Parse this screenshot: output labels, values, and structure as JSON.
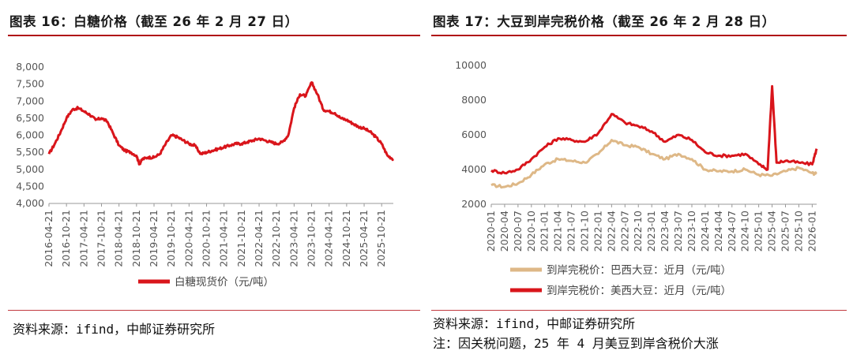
{
  "colors": {
    "red": "#d9151b",
    "tan": "#deb887",
    "rule": "#b00f16"
  },
  "panel1": {
    "title": "图表 16：白糖价格（截至 26 年 2 月 27 日）",
    "source": "资料来源：ifind，中邮证券研究所"
  },
  "panel2": {
    "title": "图表 17：大豆到岸完税价格（截至 26 年 2 月 28 日）",
    "source": "资料来源：ifind，中邮证券研究所",
    "note": "注：因关税问题，25 年 4 月美豆到岸含税价大涨"
  },
  "chart_data": [
    {
      "type": "line",
      "ylim": [
        4000,
        8000
      ],
      "yticks": [
        "4,000",
        "4,500",
        "5,000",
        "5,500",
        "6,000",
        "6,500",
        "7,000",
        "7,500",
        "8,000"
      ],
      "xticks": [
        "2016-04-21",
        "2016-10-21",
        "2017-04-21",
        "2017-10-21",
        "2018-04-21",
        "2018-10-21",
        "2019-04-21",
        "2019-10-21",
        "2020-04-21",
        "2020-10-21",
        "2021-04-21",
        "2021-10-21",
        "2022-04-21",
        "2022-10-21",
        "2023-04-21",
        "2023-10-21",
        "2024-04-21",
        "2024-10-21",
        "2025-04-21",
        "2025-10-21"
      ],
      "legend_position": "bottom",
      "series": [
        {
          "name": "白糖现货价（元/吨）",
          "color": "#d9151b",
          "x": [
            "2016-04-21",
            "2016-06-21",
            "2016-08-21",
            "2016-10-21",
            "2016-12-21",
            "2017-02-21",
            "2017-04-21",
            "2017-06-21",
            "2017-08-21",
            "2017-10-21",
            "2017-12-21",
            "2018-02-21",
            "2018-04-21",
            "2018-06-21",
            "2018-08-21",
            "2018-10-21",
            "2018-11-21",
            "2018-12-21",
            "2019-02-21",
            "2019-04-21",
            "2019-06-21",
            "2019-08-21",
            "2019-10-21",
            "2019-12-21",
            "2020-02-21",
            "2020-04-21",
            "2020-06-21",
            "2020-08-21",
            "2020-10-21",
            "2020-12-21",
            "2021-02-21",
            "2021-04-21",
            "2021-06-21",
            "2021-08-21",
            "2021-10-21",
            "2021-12-21",
            "2022-02-21",
            "2022-04-21",
            "2022-06-21",
            "2022-08-21",
            "2022-10-21",
            "2022-12-21",
            "2023-02-21",
            "2023-04-21",
            "2023-06-21",
            "2023-08-21",
            "2023-10-21",
            "2023-12-21",
            "2024-02-21",
            "2024-04-21",
            "2024-06-21",
            "2024-08-21",
            "2024-10-21",
            "2024-12-21",
            "2025-02-21",
            "2025-04-21",
            "2025-06-21",
            "2025-08-21",
            "2025-10-21",
            "2025-12-21",
            "2026-02-21"
          ],
          "y": [
            5450,
            5750,
            6100,
            6500,
            6750,
            6800,
            6700,
            6600,
            6450,
            6500,
            6400,
            6050,
            5700,
            5550,
            5500,
            5400,
            5150,
            5300,
            5350,
            5350,
            5450,
            5750,
            6000,
            5950,
            5850,
            5750,
            5700,
            5450,
            5500,
            5550,
            5600,
            5650,
            5700,
            5750,
            5750,
            5800,
            5850,
            5900,
            5850,
            5800,
            5750,
            5800,
            6000,
            6800,
            7200,
            7150,
            7550,
            7200,
            6750,
            6700,
            6650,
            6500,
            6450,
            6350,
            6250,
            6200,
            6100,
            5950,
            5750,
            5400,
            5300
          ]
        }
      ]
    },
    {
      "type": "line",
      "ylim": [
        2000,
        10000
      ],
      "yticks": [
        "2000",
        "4000",
        "6000",
        "8000",
        "10000"
      ],
      "xticks": [
        "2020-01",
        "2020-04",
        "2020-07",
        "2020-10",
        "2021-01",
        "2021-04",
        "2021-07",
        "2021-10",
        "2022-01",
        "2022-04",
        "2022-07",
        "2022-10",
        "2023-01",
        "2023-04",
        "2023-07",
        "2023-10",
        "2024-01",
        "2024-04",
        "2024-07",
        "2024-10",
        "2025-01",
        "2025-04",
        "2025-07",
        "2025-10",
        "2026-01"
      ],
      "legend_position": "bottom",
      "series": [
        {
          "name": "到岸完税价：巴西大豆：近月（元/吨）",
          "color": "#deb887",
          "x": [
            "2020-01",
            "2020-04",
            "2020-07",
            "2020-10",
            "2021-01",
            "2021-04",
            "2021-07",
            "2021-10",
            "2022-01",
            "2022-04",
            "2022-07",
            "2022-10",
            "2023-01",
            "2023-04",
            "2023-07",
            "2023-10",
            "2024-01",
            "2024-04",
            "2024-07",
            "2024-10",
            "2025-01",
            "2025-04",
            "2025-07",
            "2025-10",
            "2026-01",
            "2026-02"
          ],
          "y": [
            3100,
            3000,
            3200,
            3700,
            4300,
            4600,
            4500,
            4400,
            4900,
            5700,
            5400,
            5300,
            4900,
            4600,
            4900,
            4600,
            4000,
            3900,
            3900,
            4000,
            3700,
            3650,
            3900,
            4100,
            3800,
            3750
          ]
        },
        {
          "name": "到岸完税价：美西大豆：近月（元/吨）",
          "color": "#d9151b",
          "x": [
            "2020-01",
            "2020-04",
            "2020-07",
            "2020-10",
            "2021-01",
            "2021-04",
            "2021-07",
            "2021-10",
            "2022-01",
            "2022-04",
            "2022-07",
            "2022-10",
            "2023-01",
            "2023-04",
            "2023-07",
            "2023-10",
            "2024-01",
            "2024-04",
            "2024-07",
            "2024-10",
            "2025-01",
            "2025-03",
            "2025-04",
            "2025-05",
            "2025-07",
            "2025-10",
            "2026-01",
            "2026-02"
          ],
          "y": [
            3950,
            3800,
            4000,
            4600,
            5300,
            5800,
            5700,
            5600,
            6100,
            7200,
            6700,
            6500,
            6200,
            5600,
            6000,
            5700,
            5000,
            4800,
            4800,
            4900,
            4300,
            4000,
            8800,
            4400,
            4500,
            4400,
            4300,
            5200
          ]
        }
      ]
    }
  ]
}
